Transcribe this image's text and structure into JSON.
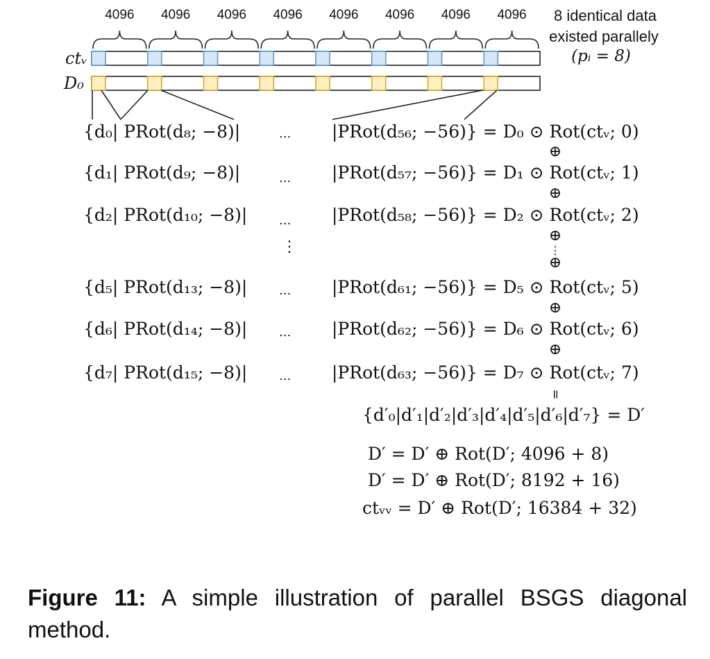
{
  "figure": {
    "chunk_sizes": [
      "4096",
      "4096",
      "4096",
      "4096",
      "4096",
      "4096",
      "4096",
      "4096"
    ],
    "note_line1": "8 identical data",
    "note_line2": "existed parallely",
    "note_line3": "(pᵢ = 8)",
    "label_ctv": "ctᵥ",
    "label_d0": "D₀",
    "colors": {
      "blue_fill": "#d6e8f5",
      "blue_stroke": "#5a9bd5",
      "yellow_fill": "#fff0c2",
      "yellow_stroke": "#d6a92c"
    },
    "rows": [
      {
        "left": "{d₀| PRot(d₈; −8)|",
        "dots": "...",
        "right": "|PRot(d₅₆; −56)} = D₀ ⊙ Rot(ctᵥ; 0)"
      },
      {
        "left": "{d₁| PRot(d₉; −8)|",
        "dots": "...",
        "right": "|PRot(d₅₇; −56)} = D₁ ⊙ Rot(ctᵥ; 1)"
      },
      {
        "left": "{d₂| PRot(d₁₀; −8)|",
        "dots": "...",
        "right": "|PRot(d₅₈; −56)} = D₂ ⊙ Rot(ctᵥ; 2)"
      },
      {
        "left": "{d₅| PRot(d₁₃; −8)|",
        "dots": "...",
        "right": "|PRot(d₆₁; −56)} = D₅ ⊙ Rot(ctᵥ; 5)"
      },
      {
        "left": "{d₆| PRot(d₁₄; −8)|",
        "dots": "...",
        "right": "|PRot(d₆₂; −56)} = D₆ ⊙ Rot(ctᵥ; 6)"
      },
      {
        "left": "{d₇| PRot(d₁₅; −8)|",
        "dots": "...",
        "right": "|PRot(d₆₃; −56)} = D₇ ⊙ Rot(ctᵥ; 7)"
      }
    ],
    "oplus": "⊕",
    "vdots": "⋮",
    "equals_vertical": "=",
    "result": "{d′₀|d′₁|d′₂|d′₃|d′₄|d′₅|d′₆|d′₇} = D′",
    "steps": [
      "D′ = D′ ⊕ Rot(D′; 4096 + 8)",
      "D′ = D′ ⊕ Rot(D′; 8192 + 16)",
      "ctᵥᵥ = D′ ⊕ Rot(D′; 16384 + 32)"
    ]
  },
  "caption": {
    "label": "Figure 11:",
    "text": " A simple illustration of parallel BSGS diagonal method."
  }
}
